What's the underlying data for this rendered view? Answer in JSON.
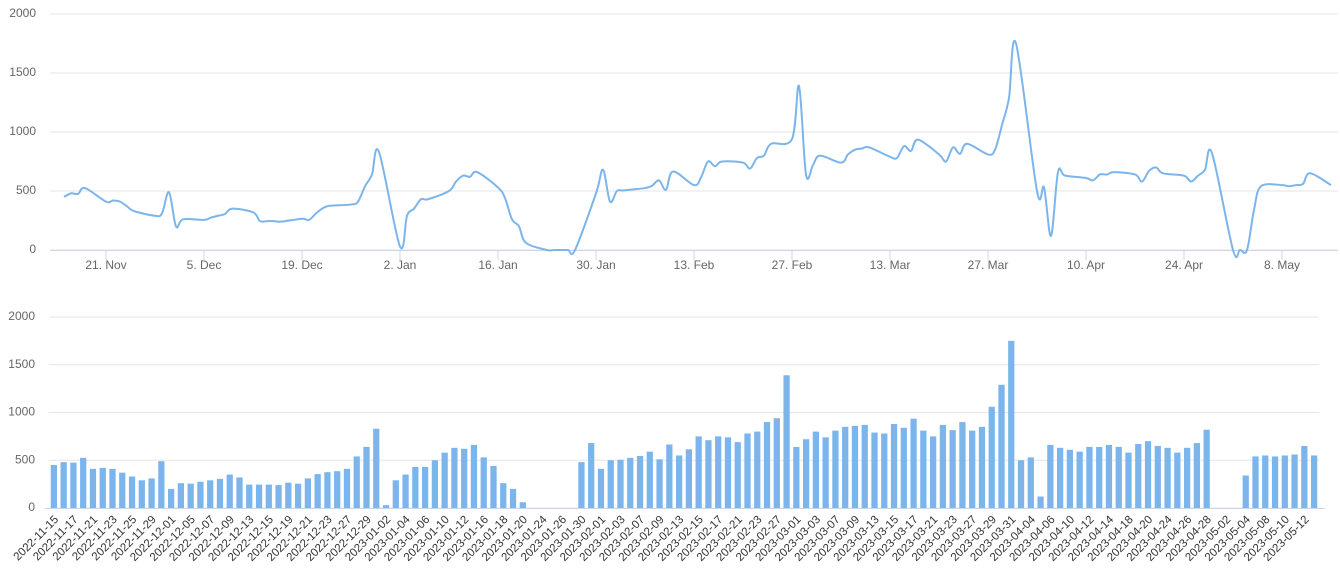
{
  "chart_data": [
    {
      "type": "line",
      "x": [
        "2022-11-15",
        "2022-11-16",
        "2022-11-17",
        "2022-11-18",
        "2022-11-21",
        "2022-11-22",
        "2022-11-23",
        "2022-11-24",
        "2022-11-25",
        "2022-11-28",
        "2022-11-29",
        "2022-11-30",
        "2022-12-01",
        "2022-12-02",
        "2022-12-05",
        "2022-12-06",
        "2022-12-07",
        "2022-12-08",
        "2022-12-09",
        "2022-12-12",
        "2022-12-13",
        "2022-12-14",
        "2022-12-15",
        "2022-12-16",
        "2022-12-19",
        "2022-12-20",
        "2022-12-21",
        "2022-12-22",
        "2022-12-23",
        "2022-12-26",
        "2022-12-27",
        "2022-12-28",
        "2022-12-29",
        "2022-12-30",
        "2023-01-02",
        "2023-01-03",
        "2023-01-04",
        "2023-01-05",
        "2023-01-06",
        "2023-01-09",
        "2023-01-10",
        "2023-01-11",
        "2023-01-12",
        "2023-01-13",
        "2023-01-16",
        "2023-01-17",
        "2023-01-18",
        "2023-01-19",
        "2023-01-20",
        "2023-01-23",
        "2023-01-24",
        "2023-01-25",
        "2023-01-26",
        "2023-01-27",
        "2023-01-30",
        "2023-01-31",
        "2023-02-01",
        "2023-02-02",
        "2023-02-03",
        "2023-02-06",
        "2023-02-07",
        "2023-02-08",
        "2023-02-09",
        "2023-02-10",
        "2023-02-13",
        "2023-02-14",
        "2023-02-15",
        "2023-02-16",
        "2023-02-17",
        "2023-02-20",
        "2023-02-21",
        "2023-02-22",
        "2023-02-23",
        "2023-02-24",
        "2023-02-27",
        "2023-02-28",
        "2023-03-01",
        "2023-03-02",
        "2023-03-03",
        "2023-03-06",
        "2023-03-07",
        "2023-03-08",
        "2023-03-09",
        "2023-03-10",
        "2023-03-13",
        "2023-03-14",
        "2023-03-15",
        "2023-03-16",
        "2023-03-17",
        "2023-03-20",
        "2023-03-21",
        "2023-03-22",
        "2023-03-23",
        "2023-03-24",
        "2023-03-27",
        "2023-03-28",
        "2023-03-29",
        "2023-03-30",
        "2023-03-31",
        "2023-04-03",
        "2023-04-04",
        "2023-04-05",
        "2023-04-06",
        "2023-04-07",
        "2023-04-10",
        "2023-04-11",
        "2023-04-12",
        "2023-04-13",
        "2023-04-14",
        "2023-04-17",
        "2023-04-18",
        "2023-04-19",
        "2023-04-20",
        "2023-04-21",
        "2023-04-24",
        "2023-04-25",
        "2023-04-26",
        "2023-04-27",
        "2023-04-28",
        "2023-05-01",
        "2023-05-02",
        "2023-05-03",
        "2023-05-04",
        "2023-05-05",
        "2023-05-08",
        "2023-05-09",
        "2023-05-10",
        "2023-05-11",
        "2023-05-12",
        "2023-05-15"
      ],
      "series": [
        {
          "color": "#7cb5ec",
          "values": [
            450,
            480,
            475,
            525,
            410,
            420,
            410,
            370,
            330,
            290,
            310,
            490,
            200,
            260,
            255,
            275,
            290,
            305,
            350,
            320,
            245,
            245,
            245,
            240,
            265,
            255,
            310,
            355,
            375,
            385,
            410,
            540,
            640,
            830,
            30,
            290,
            350,
            430,
            430,
            500,
            580,
            630,
            620,
            660,
            530,
            440,
            260,
            200,
            60,
            0,
            0,
            0,
            0,
            0,
            480,
            680,
            410,
            500,
            505,
            525,
            545,
            590,
            510,
            665,
            550,
            615,
            750,
            710,
            750,
            740,
            690,
            780,
            800,
            900,
            940,
            1390,
            640,
            720,
            800,
            740,
            810,
            850,
            860,
            870,
            790,
            780,
            880,
            840,
            935,
            810,
            750,
            870,
            815,
            900,
            810,
            850,
            1060,
            1290,
            1750,
            500,
            530,
            120,
            660,
            630,
            610,
            590,
            640,
            640,
            660,
            640,
            580,
            670,
            700,
            650,
            630,
            580,
            630,
            680,
            820,
            0,
            0,
            0,
            340,
            540,
            550,
            540,
            550,
            560,
            650,
            550
          ]
        }
      ],
      "xlim": [
        "2022-11-13",
        "2023-05-16"
      ],
      "xticks": [
        {
          "value": "2022-11-21",
          "label": "21. Nov"
        },
        {
          "value": "2022-12-05",
          "label": "5. Dec"
        },
        {
          "value": "2022-12-19",
          "label": "19. Dec"
        },
        {
          "value": "2023-01-02",
          "label": "2. Jan"
        },
        {
          "value": "2023-01-16",
          "label": "16. Jan"
        },
        {
          "value": "2023-01-30",
          "label": "30. Jan"
        },
        {
          "value": "2023-02-13",
          "label": "13. Feb"
        },
        {
          "value": "2023-02-27",
          "label": "27. Feb"
        },
        {
          "value": "2023-03-13",
          "label": "13. Mar"
        },
        {
          "value": "2023-03-27",
          "label": "27. Mar"
        },
        {
          "value": "2023-04-10",
          "label": "10. Apr"
        },
        {
          "value": "2023-04-24",
          "label": "24. Apr"
        },
        {
          "value": "2023-05-08",
          "label": "8. May"
        }
      ],
      "ylim": [
        0,
        2000
      ],
      "yticks": [
        0,
        500,
        1000,
        1500,
        2000
      ],
      "grid": true
    },
    {
      "type": "bar",
      "categories": [
        "2022-11-15",
        null,
        "2022-11-17",
        null,
        "2022-11-21",
        null,
        "2022-11-23",
        null,
        "2022-11-25",
        null,
        "2022-11-29",
        null,
        "2022-12-01",
        null,
        "2022-12-05",
        null,
        "2022-12-07",
        null,
        "2022-12-09",
        null,
        "2022-12-13",
        null,
        "2022-12-15",
        null,
        "2022-12-19",
        null,
        "2022-12-21",
        null,
        "2022-12-23",
        null,
        "2022-12-27",
        null,
        "2022-12-29",
        null,
        "2023-01-02",
        null,
        "2023-01-04",
        null,
        "2023-01-06",
        null,
        "2023-01-10",
        null,
        "2023-01-12",
        null,
        "2023-01-16",
        null,
        "2023-01-18",
        null,
        "2023-01-20",
        null,
        "2023-01-24",
        null,
        "2023-01-26",
        null,
        "2023-01-30",
        null,
        "2023-02-01",
        null,
        "2023-02-03",
        null,
        "2023-02-07",
        null,
        "2023-02-09",
        null,
        "2023-02-13",
        null,
        "2023-02-15",
        null,
        "2023-02-17",
        null,
        "2023-02-21",
        null,
        "2023-02-23",
        null,
        "2023-02-27",
        null,
        "2023-03-01",
        null,
        "2023-03-03",
        null,
        "2023-03-07",
        null,
        "2023-03-09",
        null,
        "2023-03-13",
        null,
        "2023-03-15",
        null,
        "2023-03-17",
        null,
        "2023-03-21",
        null,
        "2023-03-23",
        null,
        "2023-03-27",
        null,
        "2023-03-29",
        null,
        "2023-03-31",
        null,
        "2023-04-04",
        null,
        "2023-04-06",
        null,
        "2023-04-10",
        null,
        "2023-04-12",
        null,
        "2023-04-14",
        null,
        "2023-04-18",
        null,
        "2023-04-20",
        null,
        "2023-04-24",
        null,
        "2023-04-26",
        null,
        "2023-04-28",
        null,
        "2023-05-02",
        null,
        "2023-05-04",
        null,
        "2023-05-08",
        null,
        "2023-05-10",
        null,
        "2023-05-12",
        null
      ],
      "values": [
        450,
        480,
        475,
        525,
        410,
        420,
        410,
        370,
        330,
        290,
        310,
        490,
        200,
        260,
        255,
        275,
        290,
        305,
        350,
        320,
        245,
        245,
        245,
        240,
        265,
        255,
        310,
        355,
        375,
        385,
        410,
        540,
        640,
        830,
        30,
        290,
        350,
        430,
        430,
        500,
        580,
        630,
        620,
        660,
        530,
        440,
        260,
        200,
        60,
        0,
        0,
        0,
        0,
        0,
        480,
        680,
        410,
        500,
        505,
        525,
        545,
        590,
        510,
        665,
        550,
        615,
        750,
        710,
        750,
        740,
        690,
        780,
        800,
        900,
        940,
        1390,
        640,
        720,
        800,
        740,
        810,
        850,
        860,
        870,
        790,
        780,
        880,
        840,
        935,
        810,
        750,
        870,
        815,
        900,
        810,
        850,
        1060,
        1290,
        1750,
        500,
        530,
        120,
        660,
        630,
        610,
        590,
        640,
        640,
        660,
        640,
        580,
        670,
        700,
        650,
        630,
        580,
        630,
        680,
        820,
        0,
        0,
        0,
        340,
        540,
        550,
        540,
        550,
        560,
        650,
        550
      ],
      "color": "#7cb5ec",
      "ylim": [
        0,
        2000
      ],
      "yticks": [
        0,
        500,
        1000,
        1500,
        2000
      ],
      "grid": true
    }
  ]
}
